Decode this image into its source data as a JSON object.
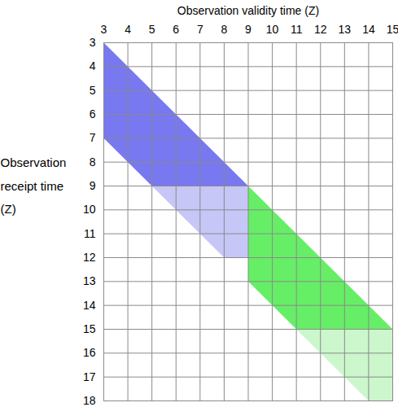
{
  "chart_data": {
    "type": "polygon",
    "x_label": "Observation validity time (Z)",
    "y_label": "Observation receipt time (Z)",
    "xlim": [
      3,
      15
    ],
    "ylim": [
      18,
      3
    ],
    "xticks": [
      3,
      4,
      5,
      6,
      7,
      8,
      9,
      10,
      11,
      12,
      13,
      14,
      15
    ],
    "yticks": [
      3,
      4,
      5,
      6,
      7,
      8,
      9,
      10,
      11,
      12,
      13,
      14,
      15,
      16,
      17,
      18
    ],
    "grid": true,
    "regions": [
      {
        "color": "#7878f0",
        "points": [
          [
            3,
            3
          ],
          [
            9,
            9
          ],
          [
            5,
            9
          ],
          [
            3,
            7
          ]
        ]
      },
      {
        "color": "#c6c6f7",
        "points": [
          [
            5,
            9
          ],
          [
            9,
            9
          ],
          [
            9,
            12
          ],
          [
            8,
            12
          ]
        ]
      },
      {
        "color": "#66ee66",
        "points": [
          [
            9,
            9
          ],
          [
            15,
            15
          ],
          [
            11,
            15
          ],
          [
            9,
            13
          ]
        ]
      },
      {
        "color": "#ccf6cc",
        "points": [
          [
            11,
            15
          ],
          [
            15,
            15
          ],
          [
            15,
            18
          ],
          [
            14,
            18
          ]
        ]
      }
    ]
  }
}
